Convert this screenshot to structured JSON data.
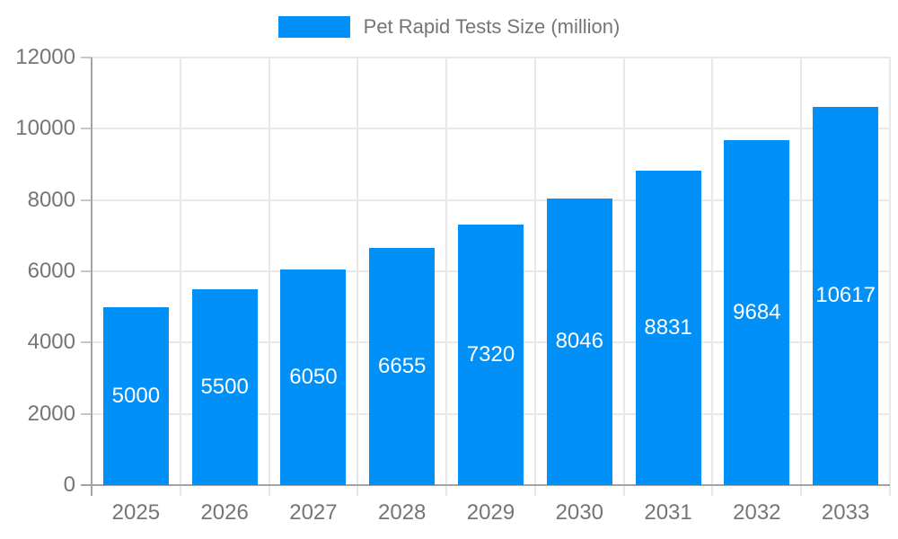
{
  "chart_data": {
    "type": "bar",
    "title": "Pet Rapid Tests Size (million)",
    "categories": [
      "2025",
      "2026",
      "2027",
      "2028",
      "2029",
      "2030",
      "2031",
      "2032",
      "2033"
    ],
    "series": [
      {
        "name": "Pet Rapid Tests Size (million)",
        "values": [
          5000,
          5500,
          6050,
          6655,
          7320,
          8046,
          8831,
          9684,
          10617
        ]
      }
    ],
    "xlabel": "",
    "ylabel": "",
    "ylim": [
      0,
      12000
    ],
    "yticks": [
      0,
      2000,
      4000,
      6000,
      8000,
      10000,
      12000
    ],
    "grid": true,
    "legend_position": "top",
    "bar_labels_inside": true,
    "colors": {
      "bar": "#0190f8",
      "bar_label": "#ffffff",
      "axis": "#a3a3a3",
      "gridline": "#e8e8e8",
      "tick": "#c6c6c6",
      "text": "#757575",
      "background": "#ffffff"
    }
  }
}
